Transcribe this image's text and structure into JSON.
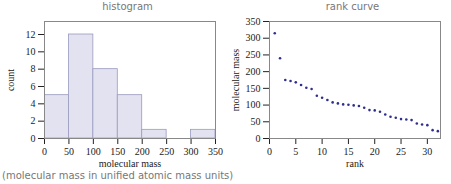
{
  "chart_data": [
    {
      "type": "histogram",
      "title": "histogram",
      "x_label": "molecular mass",
      "y_label": "count",
      "bins": [
        0,
        50,
        100,
        150,
        200,
        250,
        300,
        350
      ],
      "values": [
        5,
        12,
        8,
        5,
        1,
        0,
        1
      ],
      "color": "#e2e2f0",
      "xlim": [
        0,
        350
      ],
      "xticks": [
        0,
        50,
        100,
        150,
        200,
        250,
        300,
        350
      ],
      "ylim": [
        0,
        13.5
      ],
      "yticks": [
        0,
        2,
        4,
        6,
        8,
        10,
        12
      ]
    },
    {
      "type": "scatter",
      "title": "rank curve",
      "x_label": "rank",
      "y_label": "molecular mass",
      "x": [
        1,
        2,
        3,
        4,
        5,
        6,
        7,
        8,
        9,
        10,
        11,
        12,
        13,
        14,
        15,
        16,
        17,
        18,
        19,
        20,
        21,
        22,
        23,
        24,
        25,
        26,
        27,
        28,
        29,
        30,
        31,
        32
      ],
      "values": [
        315,
        240,
        175,
        172,
        168,
        160,
        152,
        148,
        128,
        122,
        115,
        108,
        105,
        102,
        101,
        99,
        97,
        92,
        85,
        84,
        80,
        72,
        65,
        62,
        58,
        57,
        55,
        45,
        42,
        40,
        25,
        22
      ],
      "color": "#2f2f8f",
      "marker": "circle",
      "xlim": [
        0,
        32.5
      ],
      "xticks": [
        0,
        5,
        10,
        15,
        20,
        25,
        30
      ],
      "ylim": [
        0,
        350
      ],
      "yticks": [
        0,
        50,
        100,
        150,
        200,
        250,
        300,
        350
      ]
    }
  ],
  "caption": "(molecular mass in unified atomic mass units)"
}
